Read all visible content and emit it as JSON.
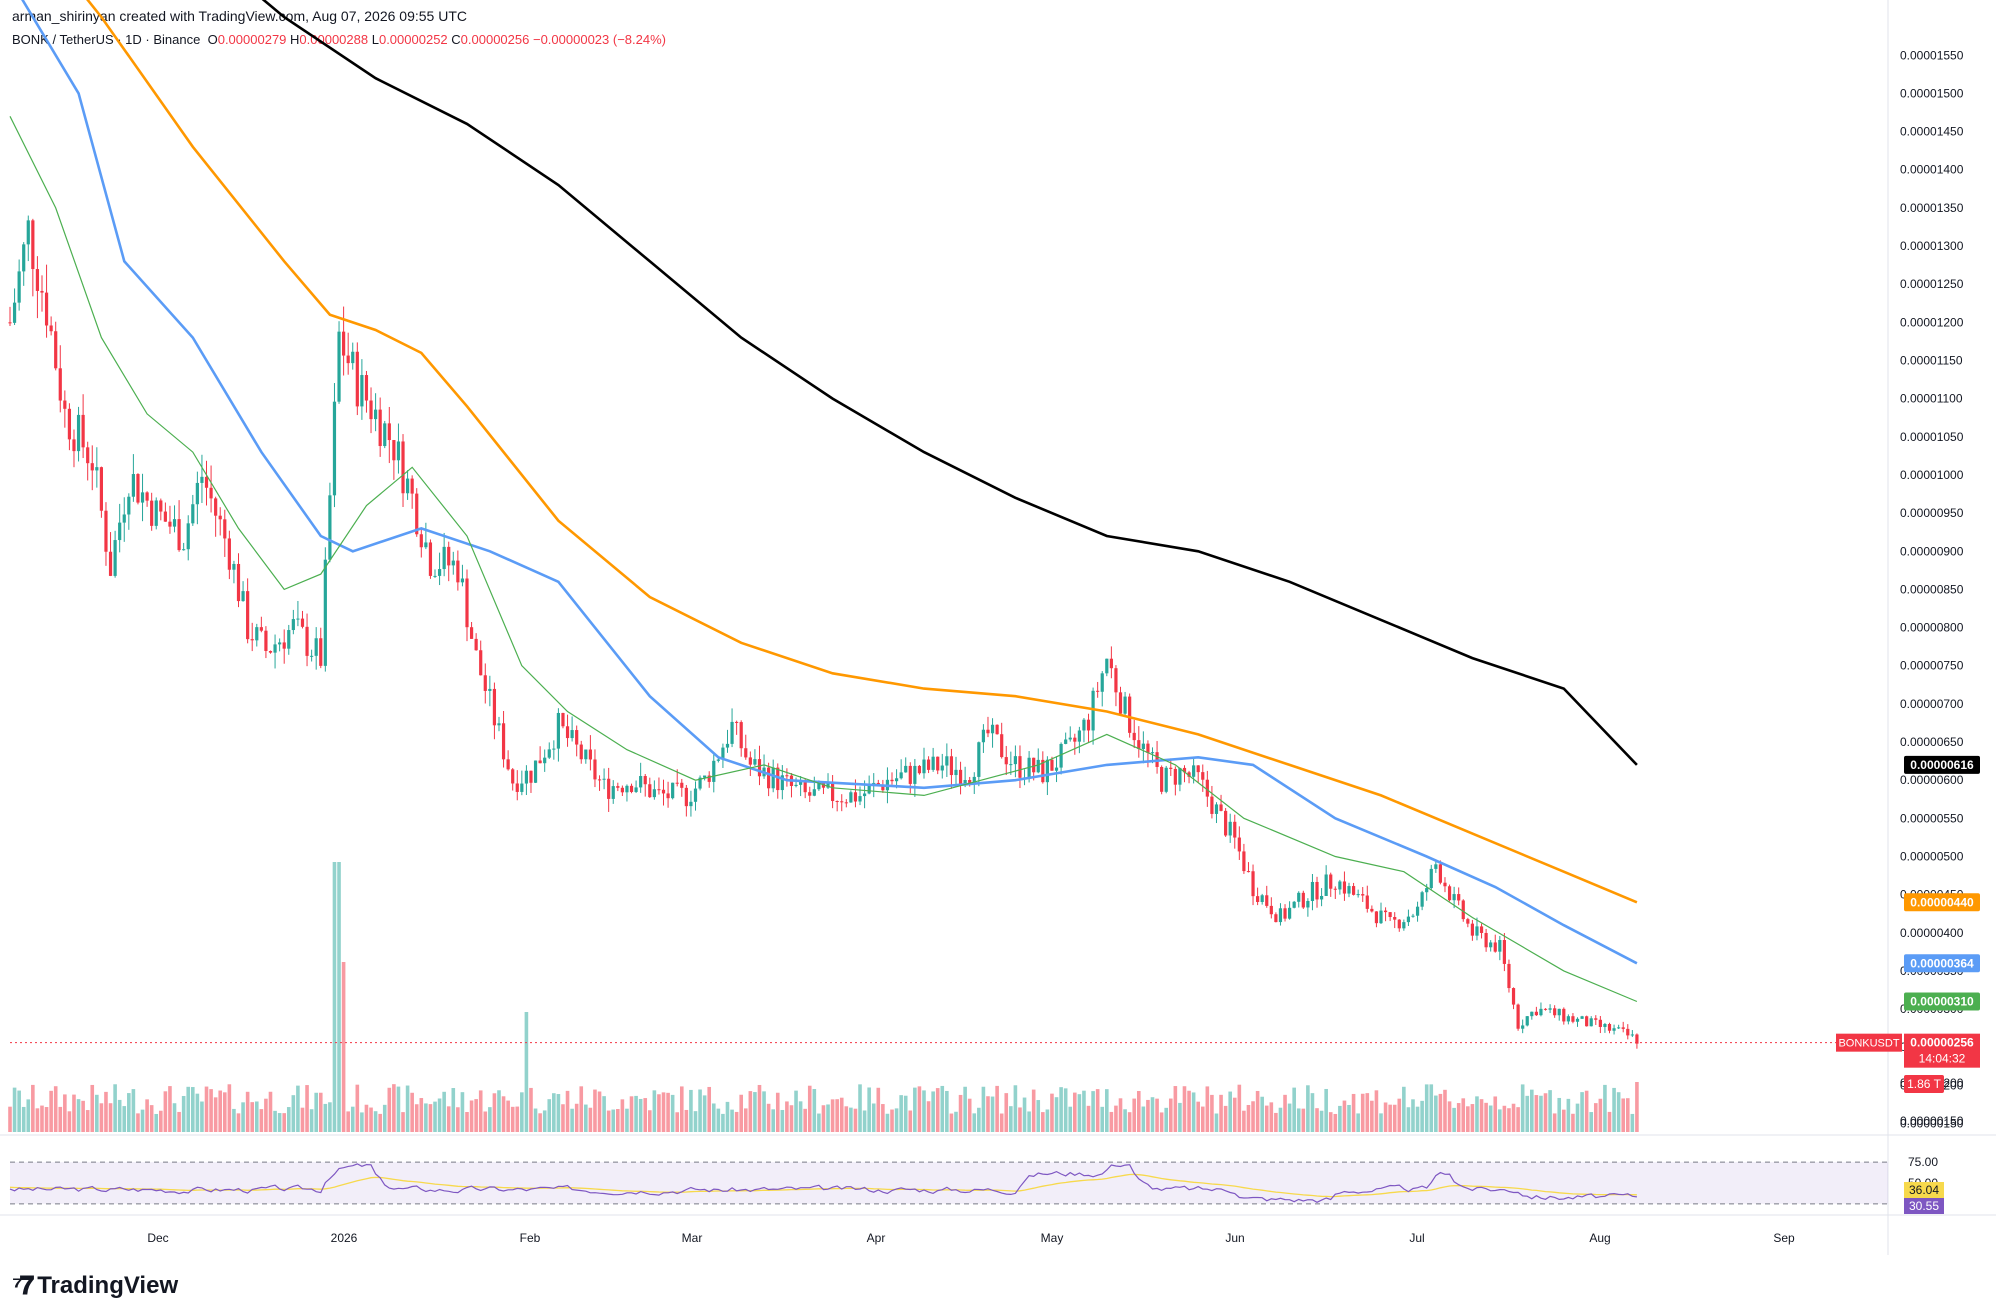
{
  "header": {
    "created_by": "arman_shirinyan created with TradingView.com, Aug 07, 2026 09:55 UTC"
  },
  "symbol_bar": {
    "name": "BONK / TetherUS · 1D · Binance",
    "open_label": "O",
    "open": "0.00000279",
    "high_label": "H",
    "high": "0.00000288",
    "low_label": "L",
    "low": "0.00000252",
    "close_label": "C",
    "close": "0.00000256",
    "change": "−0.00000023 (−8.24%)"
  },
  "brand": {
    "name": "TradingView"
  },
  "colors": {
    "up": "#26a69a",
    "down": "#f23645",
    "ma_short": "#4caf50",
    "ma_mid": "#5b9cf6",
    "ma_long": "#ff9800",
    "ma_xlong": "#000000",
    "rsi": "#7e57c2",
    "rsi_ma": "#f7d94c"
  },
  "chart_data": {
    "type": "candlestick",
    "price_axis_ticks": [
      "0.00001550",
      "0.00001500",
      "0.00001450",
      "0.00001400",
      "0.00001350",
      "0.00001300",
      "0.00001250",
      "0.00001200",
      "0.00001150",
      "0.00001100",
      "0.00001050",
      "0.00001000",
      "0.00000950",
      "0.00000900",
      "0.00000850",
      "0.00000800",
      "0.00000750",
      "0.00000700",
      "0.00000650",
      "0.00000600",
      "0.00000550",
      "0.00000500",
      "0.00000450",
      "0.00000400",
      "0.00000350",
      "0.00000300",
      "0.00000250",
      "0.00000200",
      "0.00000150"
    ],
    "price_range": [
      1.35e-06,
      1.57e-05
    ],
    "time_axis_labels": [
      "Dec",
      "2026",
      "Feb",
      "Mar",
      "Apr",
      "May",
      "Jun",
      "Jul",
      "Aug",
      "Sep"
    ],
    "last_price_label": {
      "symbol": "BONKUSDT",
      "price": "0.00000256",
      "countdown": "14:04:32"
    },
    "moving_averages": [
      {
        "color": "#000000",
        "value": "0.00000616",
        "points": [
          [
            0,
            2.05e-05
          ],
          [
            40,
            1.7e-05
          ],
          [
            60,
            1.6e-05
          ],
          [
            80,
            1.52e-05
          ],
          [
            100,
            1.46e-05
          ],
          [
            120,
            1.38e-05
          ],
          [
            140,
            1.28e-05
          ],
          [
            160,
            1.18e-05
          ],
          [
            180,
            1.1e-05
          ],
          [
            200,
            1.03e-05
          ],
          [
            220,
            9.7e-06
          ],
          [
            240,
            9.2e-06
          ],
          [
            260,
            9e-06
          ],
          [
            280,
            8.6e-06
          ],
          [
            300,
            8.1e-06
          ],
          [
            320,
            7.6e-06
          ],
          [
            340,
            7.2e-06
          ],
          [
            356,
            6.2e-06
          ]
        ]
      },
      {
        "color": "#ff9800",
        "value": "0.00000440",
        "points": [
          [
            0,
            1.75e-05
          ],
          [
            20,
            1.6e-05
          ],
          [
            40,
            1.43e-05
          ],
          [
            60,
            1.28e-05
          ],
          [
            70,
            1.21e-05
          ],
          [
            80,
            1.19e-05
          ],
          [
            90,
            1.16e-05
          ],
          [
            100,
            1.09e-05
          ],
          [
            120,
            9.4e-06
          ],
          [
            140,
            8.4e-06
          ],
          [
            160,
            7.8e-06
          ],
          [
            180,
            7.4e-06
          ],
          [
            200,
            7.2e-06
          ],
          [
            220,
            7.1e-06
          ],
          [
            240,
            6.9e-06
          ],
          [
            260,
            6.6e-06
          ],
          [
            280,
            6.2e-06
          ],
          [
            300,
            5.8e-06
          ],
          [
            320,
            5.3e-06
          ],
          [
            340,
            4.8e-06
          ],
          [
            356,
            4.4e-06
          ]
        ]
      },
      {
        "color": "#5b9cf6",
        "value": "0.00000364",
        "points": [
          [
            0,
            1.65e-05
          ],
          [
            15,
            1.5e-05
          ],
          [
            25,
            1.28e-05
          ],
          [
            40,
            1.18e-05
          ],
          [
            55,
            1.03e-05
          ],
          [
            68,
            9.2e-06
          ],
          [
            75,
            9e-06
          ],
          [
            90,
            9.3e-06
          ],
          [
            105,
            9e-06
          ],
          [
            120,
            8.6e-06
          ],
          [
            140,
            7.1e-06
          ],
          [
            155,
            6.3e-06
          ],
          [
            170,
            6e-06
          ],
          [
            200,
            5.9e-06
          ],
          [
            220,
            6e-06
          ],
          [
            240,
            6.2e-06
          ],
          [
            260,
            6.3e-06
          ],
          [
            272,
            6.2e-06
          ],
          [
            290,
            5.5e-06
          ],
          [
            310,
            5e-06
          ],
          [
            325,
            4.6e-06
          ],
          [
            340,
            4.1e-06
          ],
          [
            356,
            3.6e-06
          ]
        ]
      },
      {
        "color": "#4caf50",
        "value": "0.00000310",
        "points": [
          [
            0,
            1.47e-05
          ],
          [
            10,
            1.35e-05
          ],
          [
            20,
            1.18e-05
          ],
          [
            30,
            1.08e-05
          ],
          [
            40,
            1.03e-05
          ],
          [
            50,
            9.3e-06
          ],
          [
            60,
            8.5e-06
          ],
          [
            68,
            8.7e-06
          ],
          [
            78,
            9.6e-06
          ],
          [
            88,
            1.01e-05
          ],
          [
            100,
            9.2e-06
          ],
          [
            112,
            7.5e-06
          ],
          [
            122,
            6.9e-06
          ],
          [
            135,
            6.4e-06
          ],
          [
            150,
            6e-06
          ],
          [
            165,
            6.2e-06
          ],
          [
            180,
            5.9e-06
          ],
          [
            200,
            5.8e-06
          ],
          [
            225,
            6.2e-06
          ],
          [
            240,
            6.6e-06
          ],
          [
            255,
            6.2e-06
          ],
          [
            270,
            5.5e-06
          ],
          [
            290,
            5e-06
          ],
          [
            305,
            4.8e-06
          ],
          [
            320,
            4.2e-06
          ],
          [
            340,
            3.5e-06
          ],
          [
            356,
            3.1e-06
          ]
        ]
      }
    ],
    "price_path": [
      [
        0,
        1.2e-05
      ],
      [
        4,
        1.32e-05
      ],
      [
        8,
        1.22e-05
      ],
      [
        12,
        1.08e-05
      ],
      [
        18,
        1.02e-05
      ],
      [
        22,
        8.8e-06
      ],
      [
        26,
        1e-05
      ],
      [
        32,
        9.5e-06
      ],
      [
        38,
        9.2e-06
      ],
      [
        42,
        1e-05
      ],
      [
        48,
        9e-06
      ],
      [
        52,
        8e-06
      ],
      [
        56,
        7.7e-06
      ],
      [
        62,
        8e-06
      ],
      [
        68,
        7.6e-06
      ],
      [
        72,
        1.18e-05
      ],
      [
        76,
        1.12e-05
      ],
      [
        80,
        1.08e-05
      ],
      [
        84,
        1.04e-05
      ],
      [
        88,
        9.7e-06
      ],
      [
        92,
        8.9e-06
      ],
      [
        98,
        8.8e-06
      ],
      [
        102,
        7.6e-06
      ],
      [
        106,
        6.8e-06
      ],
      [
        110,
        6e-06
      ],
      [
        114,
        6.1e-06
      ],
      [
        120,
        6.7e-06
      ],
      [
        124,
        6.4e-06
      ],
      [
        130,
        5.9e-06
      ],
      [
        136,
        6e-06
      ],
      [
        142,
        5.8e-06
      ],
      [
        148,
        5.8e-06
      ],
      [
        152,
        6e-06
      ],
      [
        158,
        6.7e-06
      ],
      [
        162,
        6.2e-06
      ],
      [
        168,
        6e-06
      ],
      [
        174,
        5.8e-06
      ],
      [
        180,
        5.8e-06
      ],
      [
        186,
        5.8e-06
      ],
      [
        192,
        6e-06
      ],
      [
        198,
        6.1e-06
      ],
      [
        204,
        6.2e-06
      ],
      [
        210,
        6.1e-06
      ],
      [
        214,
        6.6e-06
      ],
      [
        220,
        6.2e-06
      ],
      [
        226,
        6.1e-06
      ],
      [
        232,
        6.4e-06
      ],
      [
        236,
        6.8e-06
      ],
      [
        240,
        7.6e-06
      ],
      [
        244,
        6.9e-06
      ],
      [
        248,
        6.4e-06
      ],
      [
        252,
        6e-06
      ],
      [
        256,
        6.1e-06
      ],
      [
        260,
        6e-06
      ],
      [
        264,
        5.6e-06
      ],
      [
        268,
        5.2e-06
      ],
      [
        272,
        4.6e-06
      ],
      [
        278,
        4.2e-06
      ],
      [
        284,
        4.5e-06
      ],
      [
        290,
        4.7e-06
      ],
      [
        296,
        4.4e-06
      ],
      [
        302,
        4.1e-06
      ],
      [
        308,
        4.3e-06
      ],
      [
        312,
        4.9e-06
      ],
      [
        316,
        4.4e-06
      ],
      [
        320,
        4e-06
      ],
      [
        326,
        3.8e-06
      ],
      [
        330,
        2.8e-06
      ],
      [
        334,
        3e-06
      ],
      [
        340,
        2.9e-06
      ],
      [
        346,
        2.8e-06
      ],
      [
        352,
        2.7e-06
      ],
      [
        356,
        2.6e-06
      ]
    ],
    "volume_axis_ticks": [
      "0.00000200",
      "0.00000150"
    ],
    "volume_label": "1.86 T",
    "rsi": {
      "levels": [
        "75.00",
        "50.00",
        "25.00"
      ],
      "rsi_ma_value": "36.04",
      "rsi_value": "30.55"
    }
  }
}
